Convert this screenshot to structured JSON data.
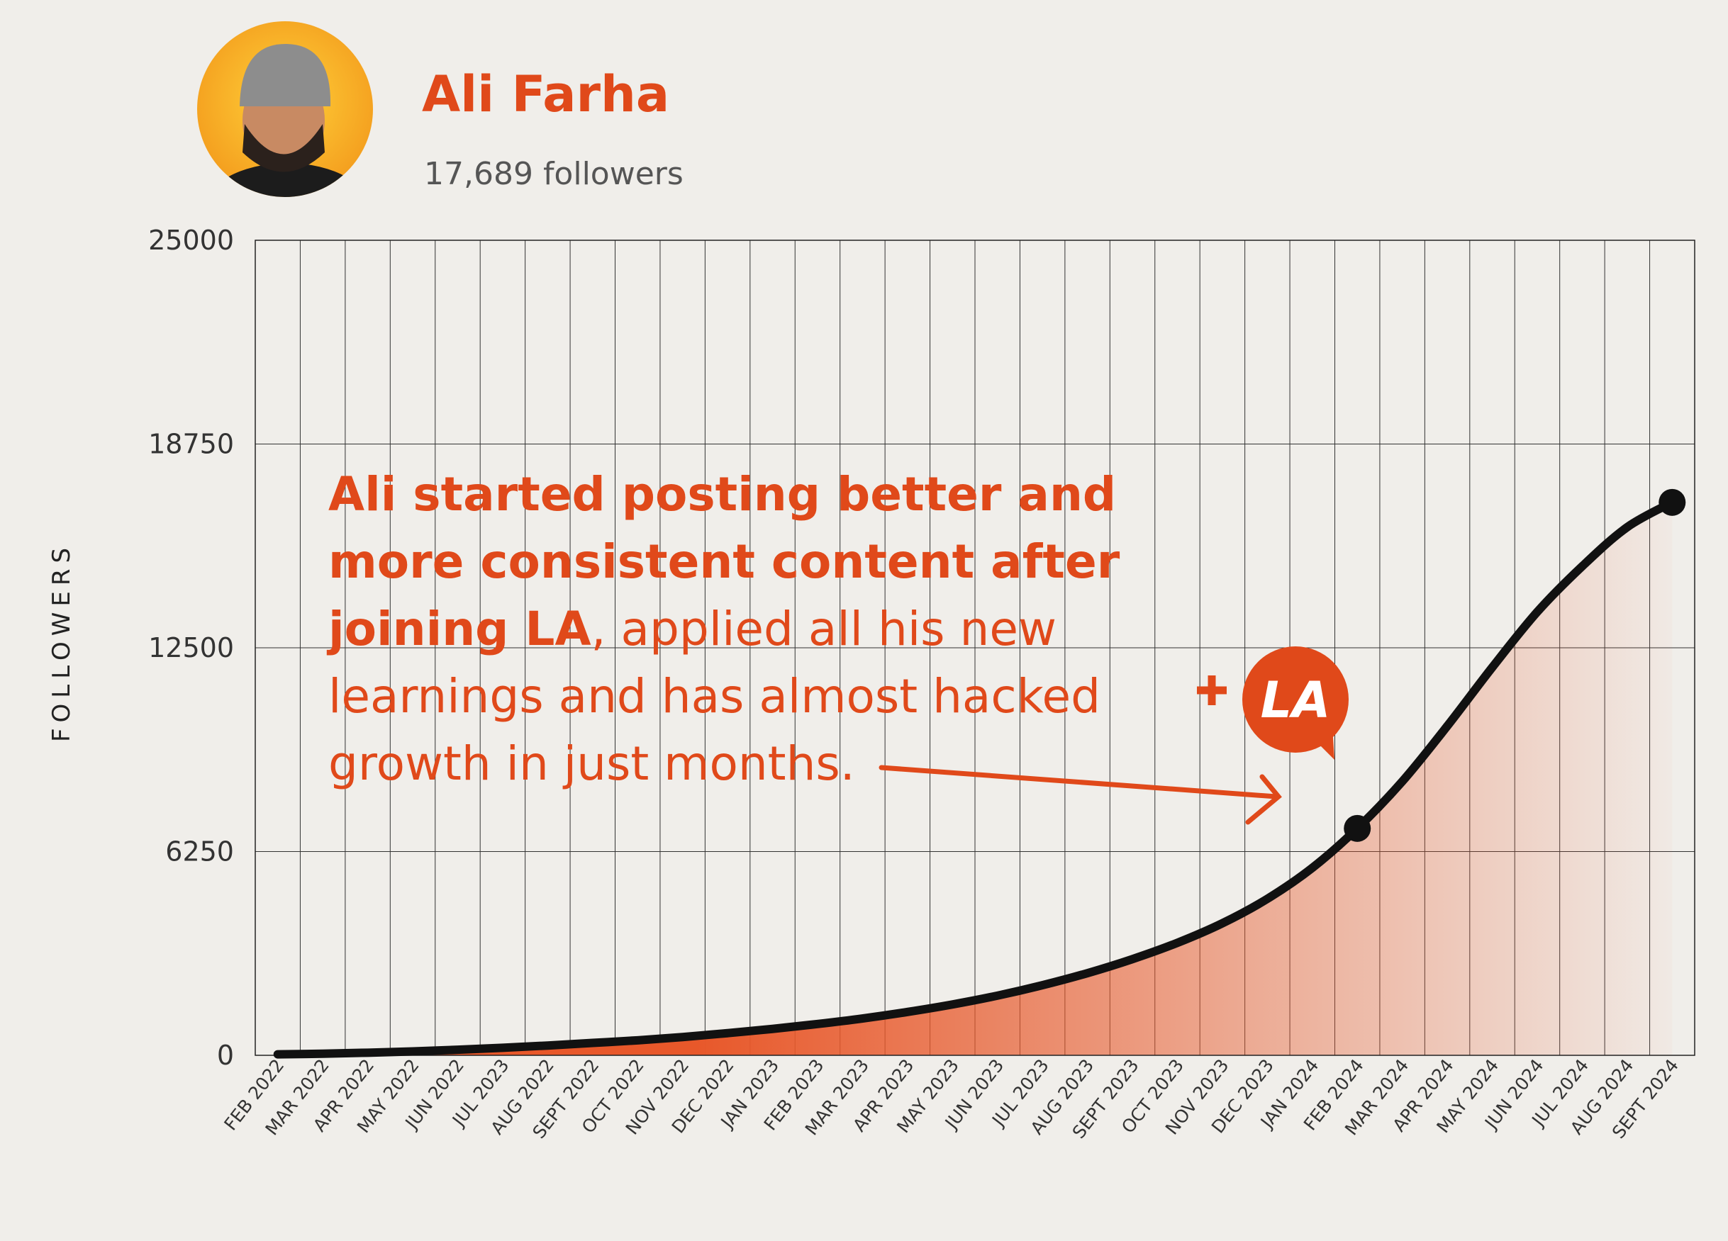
{
  "profile": {
    "name": "Ali Farha",
    "followers": "17,689 followers"
  },
  "chart_data": {
    "type": "area-line",
    "y_label": "FOLLOWERS",
    "categories": [
      "FEB 2022",
      "MAR 2022",
      "APR 2022",
      "MAY 2022",
      "JUN 2022",
      "JUL 2023",
      "AUG 2022",
      "SEPT 2022",
      "OCT 2022",
      "NOV 2022",
      "DEC 2022",
      "JAN 2023",
      "FEB 2023",
      "MAR 2023",
      "APR 2023",
      "MAY 2023",
      "JUN 2023",
      "JUL 2023",
      "AUG 2023",
      "SEPT 2023",
      "OCT 2023",
      "NOV 2023",
      "DEC 2023",
      "JAN 2024",
      "FEB 2024",
      "MAR 2024",
      "APR 2024",
      "MAY 2024",
      "JUN 2024",
      "JUL 2024",
      "AUG 2024",
      "SEPT 2024"
    ],
    "values": [
      30,
      50,
      80,
      120,
      170,
      230,
      300,
      380,
      460,
      560,
      680,
      810,
      960,
      1130,
      1330,
      1560,
      1830,
      2150,
      2520,
      2950,
      3450,
      4050,
      4800,
      5750,
      6960,
      8400,
      10100,
      11900,
      13600,
      15000,
      16200,
      16960
    ],
    "color": "#e8582a",
    "line_color": "#111111",
    "ylim": [
      0,
      25000
    ],
    "yticks": [
      0,
      6250,
      12500,
      18750,
      25000
    ],
    "grid": true,
    "highlight": [
      "FEB 2024",
      "SEPT 2024"
    ],
    "annotation": {
      "bold": "Ali started posting better and more consistent content after joining LA",
      "text": ", applied all his new learnings and has almost hacked growth in just months."
    },
    "badge": "LA"
  }
}
